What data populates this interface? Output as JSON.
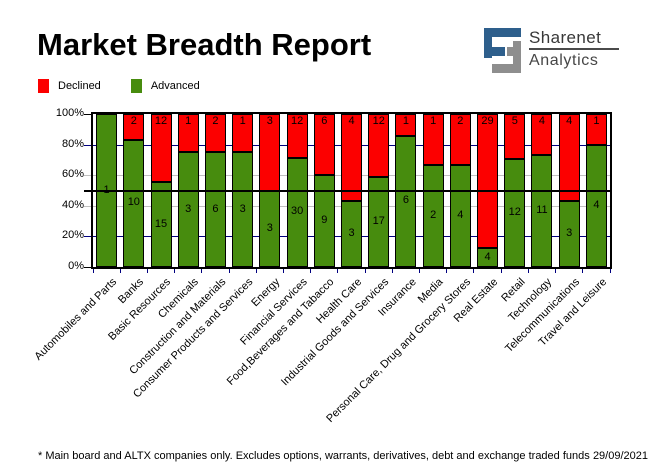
{
  "header": {
    "title": "Market Breadth Report",
    "logo": {
      "line1": "Sharenet",
      "line2": "Analytics",
      "blue": "#2E5F8C",
      "gray": "#8E8E8E"
    }
  },
  "legend": [
    {
      "label": "Declined",
      "color": "#FC0000"
    },
    {
      "label": "Advanced",
      "color": "#478C0E"
    }
  ],
  "footer": {
    "note": "* Main board and ALTX companies only. Excludes options, warrants, derivatives, debt and exchange traded funds",
    "date": "29/09/2021"
  },
  "chart_data": {
    "type": "bar",
    "stacked": true,
    "normalized": "percent",
    "legend_position": "top-left",
    "xlabel_rotation": 45,
    "ylim": [
      0,
      100
    ],
    "categories": [
      "Automobiles and Parts",
      "Banks",
      "Basic Resources",
      "Chemicals",
      "Construction and Materials",
      "Consumer Products and Services",
      "Energy",
      "Financial Services",
      "Food,Beverages and Tabacco",
      "Health Care",
      "Industrial Goods and Services",
      "Insurance",
      "Media",
      "Personal Care, Drug and Grocery Stores",
      "Real Estate",
      "Retail",
      "Technology",
      "Telecommunications",
      "Travel and Leisure"
    ],
    "series": [
      {
        "name": "Advanced",
        "color": "#478C0E",
        "values": [
          1,
          10,
          15,
          3,
          6,
          3,
          3,
          30,
          9,
          3,
          17,
          6,
          2,
          4,
          4,
          12,
          11,
          3,
          4
        ]
      },
      {
        "name": "Declined",
        "color": "#FC0000",
        "values": [
          0,
          2,
          12,
          1,
          2,
          1,
          3,
          12,
          6,
          4,
          12,
          1,
          1,
          2,
          29,
          5,
          4,
          4,
          1
        ]
      }
    ],
    "yticks": [
      {
        "value": 0,
        "label": "0%",
        "tick_color": "#000000"
      },
      {
        "value": 20,
        "label": "20%",
        "tick_color": "#000080"
      },
      {
        "value": 40,
        "label": "40%",
        "tick_color": "#C0C0C0"
      },
      {
        "value": 60,
        "label": "60%",
        "tick_color": "#C0C0C0"
      },
      {
        "value": 80,
        "label": "80%",
        "tick_color": "#000080"
      },
      {
        "value": 100,
        "label": "100%",
        "tick_color": "#000000"
      }
    ],
    "gridlines": [
      {
        "y": 20,
        "color": "#000080",
        "front": false
      },
      {
        "y": 40,
        "color": "#C0C0C0",
        "front": false
      },
      {
        "y": 60,
        "color": "#C0C0C0",
        "front": false
      },
      {
        "y": 80,
        "color": "#000080",
        "front": false
      },
      {
        "y": 50,
        "color": "#000000",
        "front": true
      }
    ],
    "axis_tick_color": "#000080"
  }
}
